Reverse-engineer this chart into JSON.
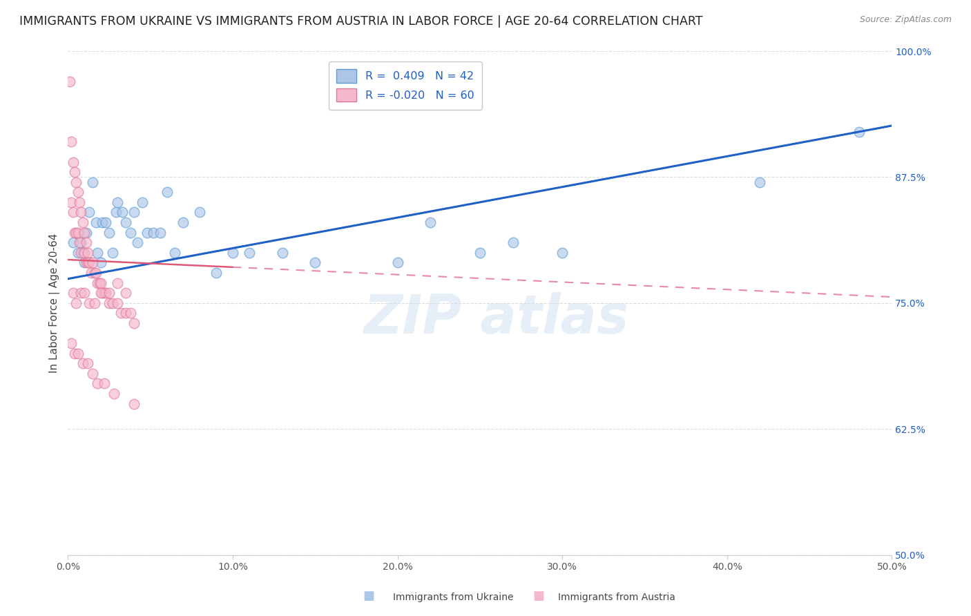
{
  "title": "IMMIGRANTS FROM UKRAINE VS IMMIGRANTS FROM AUSTRIA IN LABOR FORCE | AGE 20-64 CORRELATION CHART",
  "source": "Source: ZipAtlas.com",
  "ylabel": "In Labor Force | Age 20-64",
  "xlim": [
    0.0,
    0.5
  ],
  "ylim": [
    0.5,
    1.0
  ],
  "xtick_labels": [
    "0.0%",
    "10.0%",
    "20.0%",
    "30.0%",
    "40.0%",
    "50.0%"
  ],
  "xtick_values": [
    0.0,
    0.1,
    0.2,
    0.3,
    0.4,
    0.5
  ],
  "ytick_labels": [
    "50.0%",
    "62.5%",
    "75.0%",
    "87.5%",
    "100.0%"
  ],
  "ytick_values": [
    0.5,
    0.625,
    0.75,
    0.875,
    1.0
  ],
  "ukraine_color": "#adc6e8",
  "austria_color": "#f5b8cb",
  "ukraine_edge_color": "#5b9bd5",
  "austria_edge_color": "#e07898",
  "trend_ukraine_color": "#1f5fc8",
  "trend_austria_color": "#e05878",
  "legend_ukraine_label": "R =  0.409   N = 42",
  "legend_austria_label": "R = -0.020   N = 60",
  "footer_ukraine": "Immigrants from Ukraine",
  "footer_austria": "Immigrants from Austria",
  "ukraine_x": [
    0.003,
    0.006,
    0.008,
    0.009,
    0.01,
    0.011,
    0.013,
    0.015,
    0.017,
    0.018,
    0.02,
    0.021,
    0.023,
    0.025,
    0.027,
    0.029,
    0.03,
    0.033,
    0.035,
    0.038,
    0.04,
    0.042,
    0.045,
    0.048,
    0.052,
    0.056,
    0.06,
    0.065,
    0.07,
    0.08,
    0.09,
    0.1,
    0.11,
    0.13,
    0.15,
    0.2,
    0.22,
    0.25,
    0.27,
    0.3,
    0.42,
    0.48
  ],
  "ukraine_y": [
    0.81,
    0.8,
    0.81,
    0.8,
    0.79,
    0.82,
    0.84,
    0.87,
    0.83,
    0.8,
    0.79,
    0.83,
    0.83,
    0.82,
    0.8,
    0.84,
    0.85,
    0.84,
    0.83,
    0.82,
    0.84,
    0.81,
    0.85,
    0.82,
    0.82,
    0.82,
    0.86,
    0.8,
    0.83,
    0.84,
    0.78,
    0.8,
    0.8,
    0.8,
    0.79,
    0.79,
    0.83,
    0.8,
    0.81,
    0.8,
    0.87,
    0.92
  ],
  "austria_x": [
    0.001,
    0.002,
    0.002,
    0.003,
    0.003,
    0.004,
    0.004,
    0.005,
    0.005,
    0.006,
    0.006,
    0.007,
    0.007,
    0.008,
    0.008,
    0.009,
    0.01,
    0.01,
    0.011,
    0.011,
    0.012,
    0.012,
    0.013,
    0.014,
    0.015,
    0.016,
    0.017,
    0.018,
    0.019,
    0.02,
    0.021,
    0.022,
    0.023,
    0.025,
    0.027,
    0.03,
    0.032,
    0.035,
    0.038,
    0.04,
    0.003,
    0.005,
    0.008,
    0.01,
    0.013,
    0.016,
    0.02,
    0.025,
    0.03,
    0.035,
    0.002,
    0.004,
    0.006,
    0.009,
    0.012,
    0.015,
    0.018,
    0.022,
    0.028,
    0.04
  ],
  "austria_y": [
    0.97,
    0.91,
    0.85,
    0.89,
    0.84,
    0.88,
    0.82,
    0.87,
    0.82,
    0.86,
    0.82,
    0.85,
    0.81,
    0.84,
    0.8,
    0.83,
    0.82,
    0.8,
    0.81,
    0.79,
    0.8,
    0.79,
    0.79,
    0.78,
    0.79,
    0.78,
    0.78,
    0.77,
    0.77,
    0.77,
    0.76,
    0.76,
    0.76,
    0.75,
    0.75,
    0.75,
    0.74,
    0.74,
    0.74,
    0.73,
    0.76,
    0.75,
    0.76,
    0.76,
    0.75,
    0.75,
    0.76,
    0.76,
    0.77,
    0.76,
    0.71,
    0.7,
    0.7,
    0.69,
    0.69,
    0.68,
    0.67,
    0.67,
    0.66,
    0.65
  ],
  "trend_ukraine_x0": 0.0,
  "trend_ukraine_x1": 0.5,
  "trend_ukraine_y0": 0.774,
  "trend_ukraine_y1": 0.926,
  "trend_austria_x0": 0.0,
  "trend_austria_x1": 0.5,
  "trend_austria_y0": 0.793,
  "trend_austria_y1": 0.756,
  "trend_austria_solid_end": 0.1,
  "bg_color": "#ffffff",
  "grid_color": "#dddddd",
  "marker_size": 110,
  "marker_alpha": 0.65,
  "title_fontsize": 12.5,
  "axis_label_fontsize": 11,
  "tick_fontsize": 10,
  "watermark_text": "ZIP atlas",
  "watermark_color": "#c8ddf0",
  "watermark_alpha": 0.45
}
